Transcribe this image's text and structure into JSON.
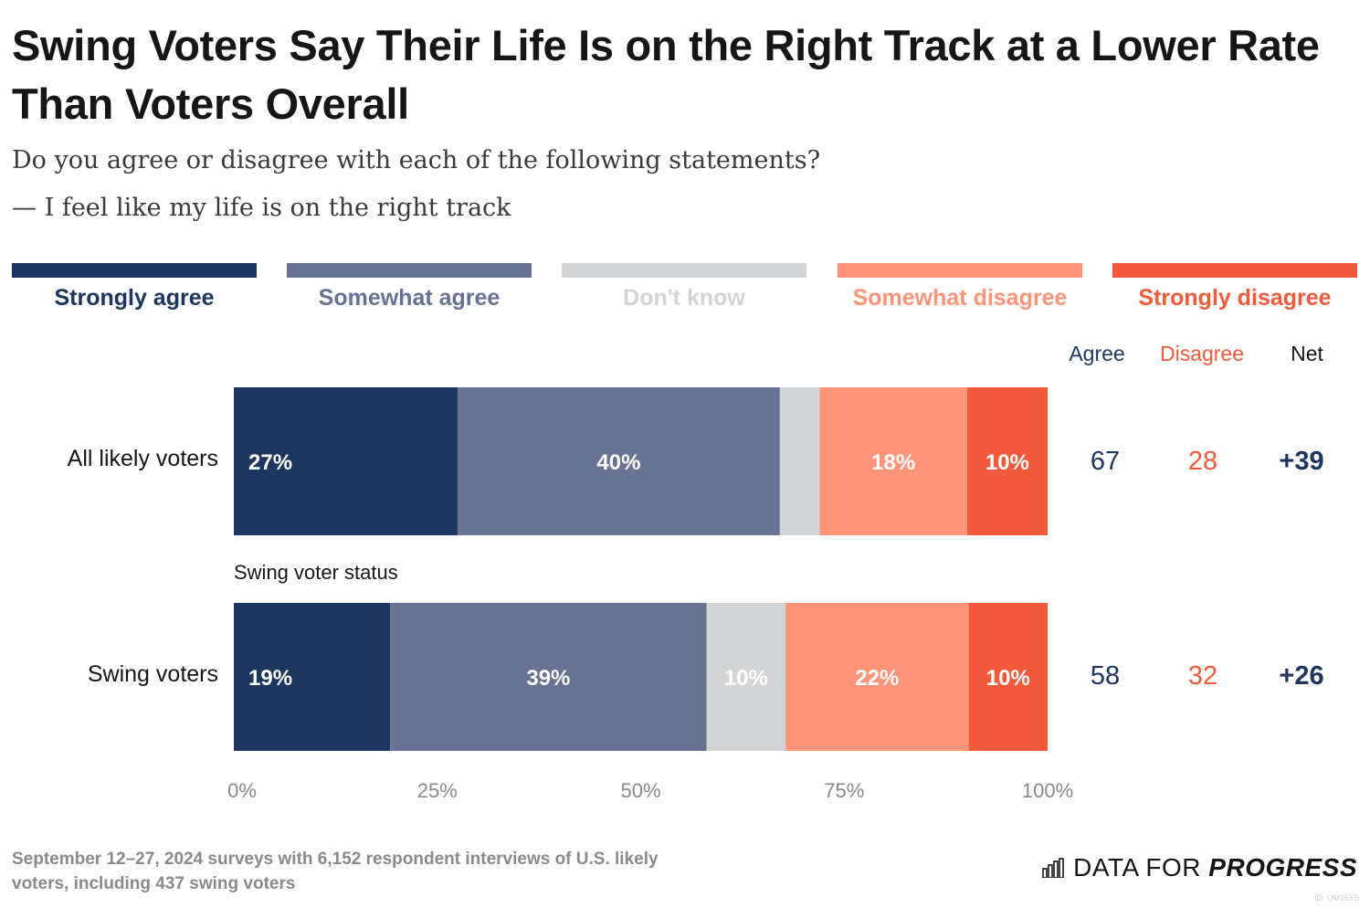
{
  "title": "Swing Voters Say Their Life Is on the Right Track at a Lower Rate Than Voters Overall",
  "subtitle": "Do you agree or disagree with each of the following statements?",
  "statement": "— I feel like my life is on the right track",
  "colors": {
    "strongly_agree": "#1d3660",
    "somewhat_agree": "#687393",
    "dont_know": "#d3d4d6",
    "somewhat_disagree": "#ff9479",
    "strongly_disagree": "#f15a3b",
    "agree_text": "#1d3660",
    "disagree_text": "#f15a3b"
  },
  "summary_headers": {
    "agree": "Agree",
    "disagree": "Disagree",
    "net": "Net"
  },
  "group_label": "Swing voter status",
  "chart_data": {
    "type": "bar",
    "orientation": "horizontal",
    "stacked": true,
    "xlim": [
      0,
      100
    ],
    "x_ticks": [
      "0%",
      "25%",
      "50%",
      "75%",
      "100%"
    ],
    "legend_position": "top",
    "categories": [
      "All likely voters",
      "Swing voters"
    ],
    "series": [
      {
        "name": "Strongly agree",
        "values": [
          27.5,
          19.2
        ],
        "labels": [
          "27%",
          "19%"
        ]
      },
      {
        "name": "Somewhat agree",
        "values": [
          39.6,
          38.9
        ],
        "labels": [
          "40%",
          "39%"
        ]
      },
      {
        "name": "Don't know",
        "values": [
          4.9,
          9.7
        ],
        "labels": [
          "",
          "10%"
        ]
      },
      {
        "name": "Somewhat disagree",
        "values": [
          18.1,
          22.5
        ],
        "labels": [
          "18%",
          "22%"
        ]
      },
      {
        "name": "Strongly disagree",
        "values": [
          9.9,
          9.7
        ],
        "labels": [
          "10%",
          "10%"
        ]
      }
    ],
    "summary": [
      {
        "agree": "67",
        "disagree": "28",
        "net": "+39"
      },
      {
        "agree": "58",
        "disagree": "32",
        "net": "+26"
      }
    ]
  },
  "footer": {
    "note": "September 12–27, 2024 surveys with 6,152 respondent interviews of U.S. likely voters, including 437 swing voters",
    "brand_regular": "DATA FOR",
    "brand_bold": "PROGRESS",
    "chart_id": "ID: UM35X5"
  }
}
